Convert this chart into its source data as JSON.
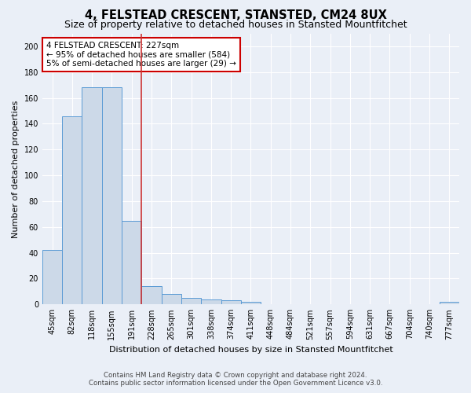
{
  "title": "4, FELSTEAD CRESCENT, STANSTED, CM24 8UX",
  "subtitle": "Size of property relative to detached houses in Stansted Mountfitchet",
  "xlabel": "Distribution of detached houses by size in Stansted Mountfitchet",
  "ylabel": "Number of detached properties",
  "footer1": "Contains HM Land Registry data © Crown copyright and database right 2024.",
  "footer2": "Contains public sector information licensed under the Open Government Licence v3.0.",
  "categories": [
    "45sqm",
    "82sqm",
    "118sqm",
    "155sqm",
    "191sqm",
    "228sqm",
    "265sqm",
    "301sqm",
    "338sqm",
    "374sqm",
    "411sqm",
    "448sqm",
    "484sqm",
    "521sqm",
    "557sqm",
    "594sqm",
    "631sqm",
    "667sqm",
    "704sqm",
    "740sqm",
    "777sqm"
  ],
  "values": [
    42,
    146,
    168,
    168,
    65,
    14,
    8,
    5,
    4,
    3,
    2,
    0,
    0,
    0,
    0,
    0,
    0,
    0,
    0,
    0,
    2
  ],
  "bar_color": "#ccd9e8",
  "bar_edge_color": "#5b9bd5",
  "property_line_index": 4,
  "annotation_line1": "4 FELSTEAD CRESCENT: 227sqm",
  "annotation_line2": "← 95% of detached houses are smaller (584)",
  "annotation_line3": "5% of semi-detached houses are larger (29) →",
  "annotation_box_color": "#ffffff",
  "annotation_box_edge_color": "#cc0000",
  "vline_color": "#cc3333",
  "ylim": [
    0,
    210
  ],
  "yticks": [
    0,
    20,
    40,
    60,
    80,
    100,
    120,
    140,
    160,
    180,
    200
  ],
  "bg_color": "#eaeff7",
  "plot_bg_color": "#eaeff7",
  "grid_color": "#ffffff",
  "title_fontsize": 10.5,
  "subtitle_fontsize": 9,
  "axis_label_fontsize": 8,
  "tick_fontsize": 7,
  "annot_fontsize": 7.5
}
